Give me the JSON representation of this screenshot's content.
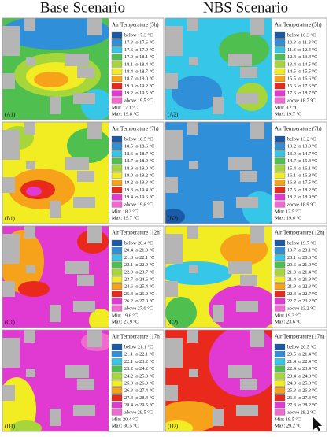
{
  "header": {
    "left": "Base Scenario",
    "right": "NBS Scenario"
  },
  "legend_colors": [
    "#1a5aa6",
    "#2f8fd8",
    "#35c6e8",
    "#4fbf4f",
    "#a6d63a",
    "#f2ec23",
    "#f7a21b",
    "#e8291c",
    "#e03ad2",
    "#f06ad0"
  ],
  "panels": [
    {
      "label": "(A1)",
      "legend_title": "Air Temperature (5h)",
      "classes": [
        "below 17.3 °C",
        "17.3 to 17.6 °C",
        "17.6 to 17.9 °C",
        "17.9 to 18.1 °C",
        "18.1 to 18.4 °C",
        "18.4 to 18.7 °C",
        "18.7 to 19.0 °C",
        "19.0 to 19.2 °C",
        "19.2 to 19.5 °C",
        "above 19.5 °C"
      ],
      "min": "Min: 17.1 °C",
      "max": "Max: 19.8 °C"
    },
    {
      "label": "(A2)",
      "legend_title": "Air Temperature (5h)",
      "classes": [
        "below 10.3 °C",
        "10.3 to 11.3 °C",
        "11.3 to 12.4 °C",
        "12.4 to 13.4 °C",
        "13.4 to 14.5 °C",
        "14.5 to 15.5 °C",
        "15.5 to 16.6 °C",
        "16.6 to 17.6 °C",
        "17.6 to 18.7 °C",
        "above 18.7 °C"
      ],
      "min": "Min: 9.2 °C",
      "max": "Max: 19.7 °C"
    },
    {
      "label": "(B1)",
      "legend_title": "Air Temperature (7h)",
      "classes": [
        "below 18.5 °C",
        "18.5 to 18.6 °C",
        "18.6 to 18.7 °C",
        "18.7 to 18.9 °C",
        "18.9 to 19.0 °C",
        "19.0 to 19.2 °C",
        "19.2 to 19.3 °C",
        "19.3 to 19.4 °C",
        "19.4 to 19.6 °C",
        "above 19.6 °C"
      ],
      "min": "Min: 18.3 °C",
      "max": "Max: 19.7 °C"
    },
    {
      "label": "(B2)",
      "legend_title": "Air Temperature (7h)",
      "classes": [
        "below 13.2 °C",
        "13.2 to 13.9 °C",
        "13.9 to 14.7 °C",
        "14.7 to 15.4 °C",
        "15.4 to 16.1 °C",
        "16.1 to 16.8 °C",
        "16.8 to 17.5 °C",
        "17.5 to 18.2 °C",
        "18.2 to 18.9 °C",
        "above 18.9 °C"
      ],
      "min": "Min: 12.5 °C",
      "max": "Max: 19.6 °C"
    },
    {
      "label": "(C1)",
      "legend_title": "Air Temperature (12h)",
      "classes": [
        "below 20.4 °C",
        "20.4 to 21.3 °C",
        "21.3 to 22.1 °C",
        "22.1 to 22.9 °C",
        "22.9 to 23.7 °C",
        "23.7 to 24.6 °C",
        "24.6 to 25.4 °C",
        "25.4 to 26.2 °C",
        "26.2 to 27.0 °C",
        "above 27.0 °C"
      ],
      "min": "Min: 19.6 °C",
      "max": "Max: 27.9 °C"
    },
    {
      "label": "(C2)",
      "legend_title": "Air Temperature (12h)",
      "classes": [
        "below 19.7 °C",
        "19.7 to 20.1 °C",
        "20.1 to 20.6 °C",
        "20.6 to 21.0 °C",
        "21.0 to 21.4 °C",
        "21.4 to 21.9 °C",
        "21.9 to 22.3 °C",
        "22.3 to 22.7 °C",
        "22.7 to 23.2 °C",
        "above 23.2 °C"
      ],
      "min": "Min: 19.3 °C",
      "max": "Max: 23.6 °C"
    },
    {
      "label": "(D1)",
      "legend_title": "Air Temperature (17h)",
      "classes": [
        "below 21.1 °C",
        "21.1 to 22.1 °C",
        "22.1 to 23.2 °C",
        "23.2 to 24.2 °C",
        "24.2 to 25.3 °C",
        "25.3 to 26.3 °C",
        "26.3 to 27.4 °C",
        "27.4 to 28.4 °C",
        "28.4 to 29.5 °C",
        "above 29.5 °C"
      ],
      "min": "Min: 20.4 °C",
      "max": "Max: 30.5 °C"
    },
    {
      "label": "(D2)",
      "legend_title": "Air Temperature (17h)",
      "classes": [
        "below 20.5 °C",
        "20.5 to 21.4 °C",
        "21.4 to 22.4 °C",
        "22.4 to 23.4 °C",
        "23.4 to 24.3 °C",
        "24.3 to 25.3 °C",
        "25.3 to 26.3 °C",
        "26.3 to 27.3 °C",
        "27.3 to 28.2 °C",
        "above 28.2 °C"
      ],
      "min": "Min: 19.5 °C",
      "max": "Max: 29.2 °C"
    }
  ]
}
